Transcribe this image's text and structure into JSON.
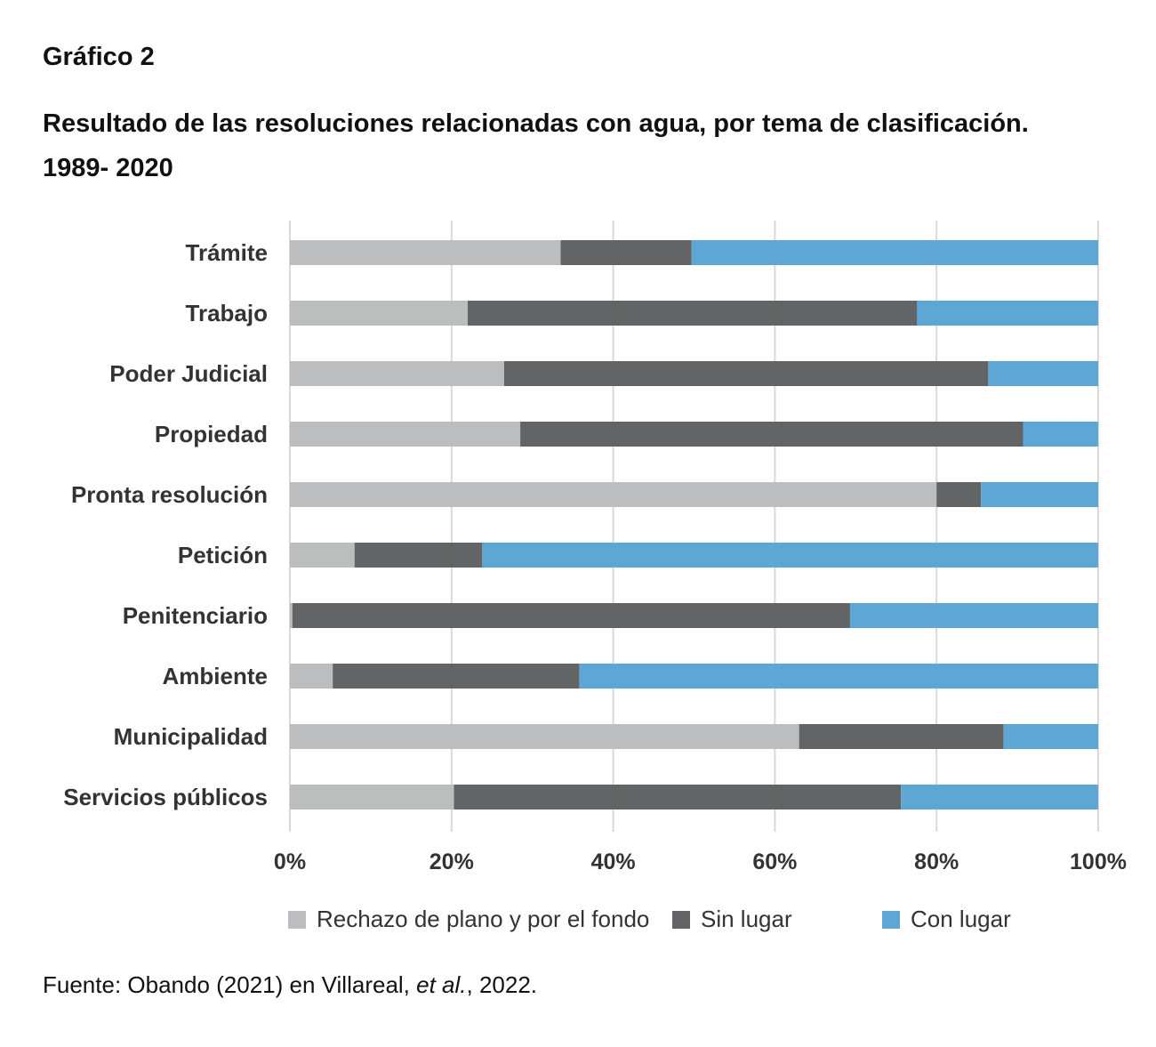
{
  "figure": {
    "label": "Gráfico 2",
    "title_line1": "Resultado de las resoluciones relacionadas con agua, por tema de clasificación.",
    "title_line2": "1989- 2020"
  },
  "colors": {
    "rechazo": "#bcbdbf",
    "sin_lugar": "#636466",
    "con_lugar": "#5ea7d4",
    "grid": "#d9d9d9"
  },
  "chart_data": {
    "type": "bar",
    "orientation": "horizontal",
    "stacked": true,
    "percent": true,
    "categories": [
      "Trámite",
      "Trabajo",
      "Poder Judicial",
      "Propiedad",
      "Pronta resolución",
      "Petición",
      "Penitenciario",
      "Ambiente",
      "Municipalidad",
      "Servicios públicos"
    ],
    "series": [
      {
        "name": "Rechazo de plano y por el fondo",
        "key": "rechazo",
        "values": [
          33.5,
          22.0,
          26.5,
          28.5,
          80.0,
          8.0,
          0.3,
          5.3,
          63.0,
          20.3
        ]
      },
      {
        "name": "Sin lugar",
        "key": "sin_lugar",
        "values": [
          16.2,
          55.6,
          59.9,
          62.2,
          5.5,
          15.8,
          69.0,
          30.5,
          25.3,
          55.3
        ]
      },
      {
        "name": "Con lugar",
        "key": "con_lugar",
        "values": [
          50.3,
          22.4,
          13.6,
          9.3,
          14.5,
          76.2,
          30.7,
          64.2,
          11.7,
          24.4
        ]
      }
    ],
    "x_ticks": [
      "0%",
      "20%",
      "40%",
      "60%",
      "80%",
      "100%"
    ],
    "xlim": [
      0,
      100
    ],
    "grid": true,
    "legend": "bottom"
  },
  "legend": {
    "items": [
      {
        "label": "Rechazo de plano y por el fondo",
        "key": "rechazo"
      },
      {
        "label": "Sin lugar",
        "key": "sin_lugar"
      },
      {
        "label": "Con lugar",
        "key": "con_lugar"
      }
    ]
  },
  "source": {
    "prefix": "Fuente: Obando (2021) en Villareal, ",
    "italic": "et al.",
    "suffix": ", 2022."
  }
}
